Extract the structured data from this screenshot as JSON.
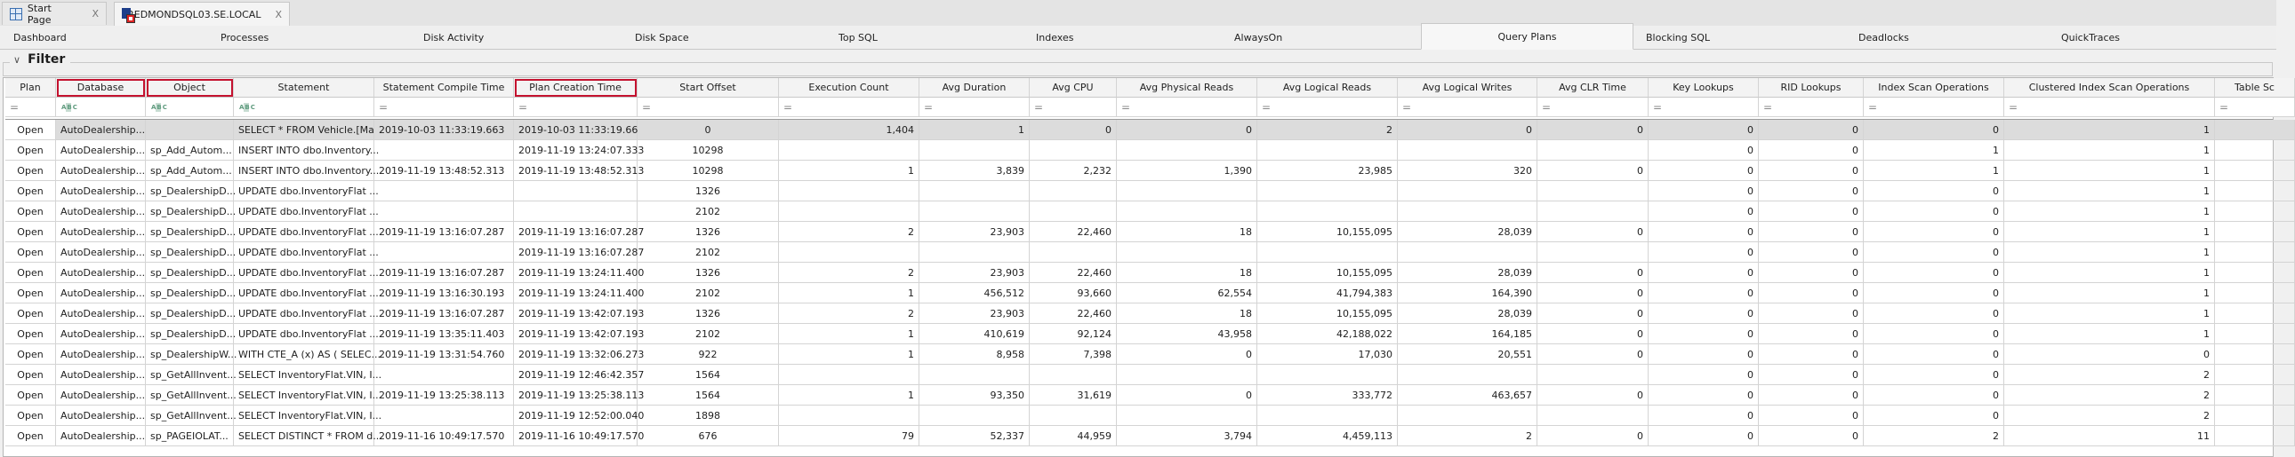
{
  "document_tabs": [
    {
      "label": "Start Page",
      "icon": "start-page-icon",
      "close": "X"
    },
    {
      "label": "REDMONDSQL03.SE.LOCAL",
      "icon": "server-icon",
      "close": "X",
      "active": true
    }
  ],
  "nav_tabs": [
    {
      "label": "Dashboard"
    },
    {
      "label": "Processes"
    },
    {
      "label": "Disk Activity"
    },
    {
      "label": "Disk Space"
    },
    {
      "label": "Top SQL"
    },
    {
      "label": "Indexes"
    },
    {
      "label": "AlwaysOn"
    },
    {
      "label": "Query Plans",
      "active": true
    },
    {
      "label": "Blocking SQL"
    },
    {
      "label": "Deadlocks"
    },
    {
      "label": "QuickTraces"
    }
  ],
  "filter": {
    "title": "Filter",
    "icon": "chevron-down-icon"
  },
  "colors": {
    "highlight_box": "#c4122f",
    "selected_row": "#dcdcdc",
    "text_filter_icon": "#5f9b7e"
  },
  "grid": {
    "columns": [
      {
        "label": "Plan",
        "align": "center",
        "filter": "equals"
      },
      {
        "label": "Database",
        "align": "left",
        "filter": "text",
        "highlighted": true
      },
      {
        "label": "Object",
        "align": "left",
        "filter": "text",
        "highlighted": true
      },
      {
        "label": "Statement",
        "align": "left",
        "filter": "text"
      },
      {
        "label": "Statement Compile Time",
        "align": "left",
        "filter": "equals"
      },
      {
        "label": "Plan Creation Time",
        "align": "left",
        "filter": "equals",
        "highlighted": true
      },
      {
        "label": "Start Offset",
        "align": "center",
        "filter": "equals"
      },
      {
        "label": "Execution Count",
        "align": "right",
        "filter": "equals"
      },
      {
        "label": "Avg Duration",
        "align": "right",
        "filter": "equals"
      },
      {
        "label": "Avg CPU",
        "align": "right",
        "filter": "equals"
      },
      {
        "label": "Avg Physical Reads",
        "align": "right",
        "filter": "equals"
      },
      {
        "label": "Avg Logical Reads",
        "align": "right",
        "filter": "equals"
      },
      {
        "label": "Avg Logical Writes",
        "align": "right",
        "filter": "equals"
      },
      {
        "label": "Avg CLR Time",
        "align": "right",
        "filter": "equals"
      },
      {
        "label": "Key Lookups",
        "align": "right",
        "filter": "equals"
      },
      {
        "label": "RID Lookups",
        "align": "right",
        "filter": "equals"
      },
      {
        "label": "Index Scan Operations",
        "align": "right",
        "filter": "equals"
      },
      {
        "label": "Clustered Index Scan Operations",
        "align": "right",
        "filter": "equals"
      },
      {
        "label": "Table Sc",
        "align": "right",
        "filter": "equals"
      }
    ],
    "filter_symbols": {
      "equals": "=",
      "text": "ABC"
    },
    "selected_row": 0,
    "rows": [
      [
        "Open",
        "AutoDealership...",
        "",
        "SELECT * FROM Vehicle.[Ma...",
        "2019-10-03 11:33:19.663",
        "2019-10-03 11:33:19.667",
        "0",
        "1,404",
        "1",
        "0",
        "0",
        "2",
        "0",
        "0",
        "0",
        "0",
        "0",
        "1",
        ""
      ],
      [
        "Open",
        "AutoDealership...",
        "sp_Add_Autom...",
        "INSERT INTO dbo.Inventory...",
        "",
        "2019-11-19 13:24:07.333",
        "10298",
        "",
        "",
        "",
        "",
        "",
        "",
        "",
        "0",
        "0",
        "1",
        "1",
        ""
      ],
      [
        "Open",
        "AutoDealership...",
        "sp_Add_Autom...",
        "INSERT INTO dbo.Inventory...",
        "2019-11-19 13:48:52.313",
        "2019-11-19 13:48:52.313",
        "10298",
        "1",
        "3,839",
        "2,232",
        "1,390",
        "23,985",
        "320",
        "0",
        "0",
        "0",
        "1",
        "1",
        ""
      ],
      [
        "Open",
        "AutoDealership...",
        "sp_DealershipD...",
        "UPDATE dbo.InventoryFlat ...",
        "",
        "",
        "1326",
        "",
        "",
        "",
        "",
        "",
        "",
        "",
        "0",
        "0",
        "0",
        "1",
        ""
      ],
      [
        "Open",
        "AutoDealership...",
        "sp_DealershipD...",
        "UPDATE dbo.InventoryFlat ...",
        "",
        "",
        "2102",
        "",
        "",
        "",
        "",
        "",
        "",
        "",
        "0",
        "0",
        "0",
        "1",
        ""
      ],
      [
        "Open",
        "AutoDealership...",
        "sp_DealershipD...",
        "UPDATE dbo.InventoryFlat ...",
        "2019-11-19 13:16:07.287",
        "2019-11-19 13:16:07.287",
        "1326",
        "2",
        "23,903",
        "22,460",
        "18",
        "10,155,095",
        "28,039",
        "0",
        "0",
        "0",
        "0",
        "1",
        ""
      ],
      [
        "Open",
        "AutoDealership...",
        "sp_DealershipD...",
        "UPDATE dbo.InventoryFlat ...",
        "",
        "2019-11-19 13:16:07.287",
        "2102",
        "",
        "",
        "",
        "",
        "",
        "",
        "",
        "0",
        "0",
        "0",
        "1",
        ""
      ],
      [
        "Open",
        "AutoDealership...",
        "sp_DealershipD...",
        "UPDATE dbo.InventoryFlat ...",
        "2019-11-19 13:16:07.287",
        "2019-11-19 13:24:11.400",
        "1326",
        "2",
        "23,903",
        "22,460",
        "18",
        "10,155,095",
        "28,039",
        "0",
        "0",
        "0",
        "0",
        "1",
        ""
      ],
      [
        "Open",
        "AutoDealership...",
        "sp_DealershipD...",
        "UPDATE dbo.InventoryFlat ...",
        "2019-11-19 13:16:30.193",
        "2019-11-19 13:24:11.400",
        "2102",
        "1",
        "456,512",
        "93,660",
        "62,554",
        "41,794,383",
        "164,390",
        "0",
        "0",
        "0",
        "0",
        "1",
        ""
      ],
      [
        "Open",
        "AutoDealership...",
        "sp_DealershipD...",
        "UPDATE dbo.InventoryFlat ...",
        "2019-11-19 13:16:07.287",
        "2019-11-19 13:42:07.193",
        "1326",
        "2",
        "23,903",
        "22,460",
        "18",
        "10,155,095",
        "28,039",
        "0",
        "0",
        "0",
        "0",
        "1",
        ""
      ],
      [
        "Open",
        "AutoDealership...",
        "sp_DealershipD...",
        "UPDATE dbo.InventoryFlat ...",
        "2019-11-19 13:35:11.403",
        "2019-11-19 13:42:07.193",
        "2102",
        "1",
        "410,619",
        "92,124",
        "43,958",
        "42,188,022",
        "164,185",
        "0",
        "0",
        "0",
        "0",
        "1",
        ""
      ],
      [
        "Open",
        "AutoDealership...",
        "sp_DealershipW...",
        "WITH CTE_A (x) AS ( SELEC...",
        "2019-11-19 13:31:54.760",
        "2019-11-19 13:32:06.273",
        "922",
        "1",
        "8,958",
        "7,398",
        "0",
        "17,030",
        "20,551",
        "0",
        "0",
        "0",
        "0",
        "0",
        ""
      ],
      [
        "Open",
        "AutoDealership...",
        "sp_GetAllInvent...",
        "SELECT InventoryFlat.VIN, I...",
        "",
        "2019-11-19 12:46:42.357",
        "1564",
        "",
        "",
        "",
        "",
        "",
        "",
        "",
        "0",
        "0",
        "0",
        "2",
        ""
      ],
      [
        "Open",
        "AutoDealership...",
        "sp_GetAllInvent...",
        "SELECT InventoryFlat.VIN, I...",
        "2019-11-19 13:25:38.113",
        "2019-11-19 13:25:38.113",
        "1564",
        "1",
        "93,350",
        "31,619",
        "0",
        "333,772",
        "463,657",
        "0",
        "0",
        "0",
        "0",
        "2",
        ""
      ],
      [
        "Open",
        "AutoDealership...",
        "sp_GetAllInvent...",
        "SELECT InventoryFlat.VIN, I...",
        "",
        "2019-11-19 12:52:00.040",
        "1898",
        "",
        "",
        "",
        "",
        "",
        "",
        "",
        "0",
        "0",
        "0",
        "2",
        ""
      ],
      [
        "Open",
        "AutoDealership...",
        "sp_PAGEIOLAT...",
        "SELECT DISTINCT * FROM d...",
        "2019-11-16 10:49:17.570",
        "2019-11-16 10:49:17.570",
        "676",
        "79",
        "52,337",
        "44,959",
        "3,794",
        "4,459,113",
        "2",
        "0",
        "0",
        "0",
        "2",
        "11",
        ""
      ]
    ]
  }
}
